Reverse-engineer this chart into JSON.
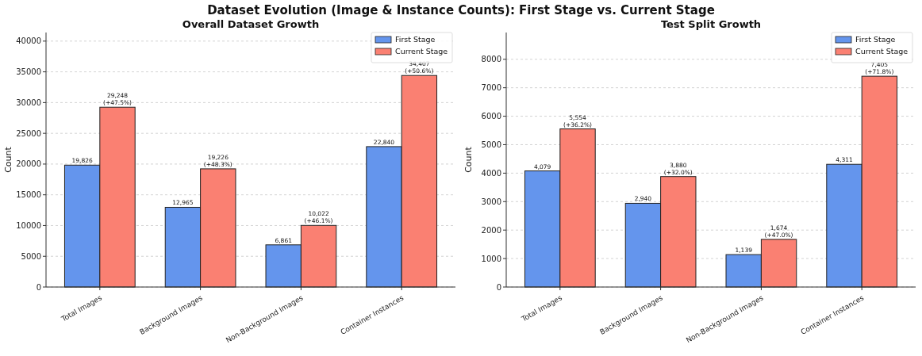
{
  "chart_data": [
    {
      "type": "bar",
      "title": "Overall Dataset Growth",
      "ylabel": "Count",
      "annotations": [
        "Dataset Evolution (Image & Instance Counts): First Stage vs. Current Stage"
      ],
      "categories": [
        "Total Images",
        "Background Images",
        "Non-Background Images",
        "Container Instances"
      ],
      "series": [
        {
          "name": "First Stage",
          "color": "#6495ed",
          "values": [
            19826,
            12965,
            6861,
            22840
          ],
          "value_labels": [
            "19,826",
            "12,965",
            "6,861",
            "22,840"
          ]
        },
        {
          "name": "Current Stage",
          "color": "#fa8072",
          "values": [
            29248,
            19226,
            10022,
            34407
          ],
          "value_labels": [
            "29,248\n(+47.5%)",
            "19,226\n(+48.3%)",
            "10,022\n(+46.1%)",
            "34,407\n(+50.6%)"
          ]
        }
      ],
      "ylim": [
        0,
        41400
      ],
      "yticks": [
        0,
        5000,
        10000,
        15000,
        20000,
        25000,
        30000,
        35000,
        40000
      ],
      "grid": "y",
      "legend": "top right"
    },
    {
      "type": "bar",
      "title": "Test Split Growth",
      "ylabel": "Count",
      "categories": [
        "Total Images",
        "Background Images",
        "Non-Background Images",
        "Container Instances"
      ],
      "series": [
        {
          "name": "First Stage",
          "color": "#6495ed",
          "values": [
            4079,
            2940,
            1139,
            4311
          ],
          "value_labels": [
            "4,079",
            "2,940",
            "1,139",
            "4,311"
          ]
        },
        {
          "name": "Current Stage",
          "color": "#fa8072",
          "values": [
            5554,
            3880,
            1674,
            7405
          ],
          "value_labels": [
            "5,554\n(+36.2%)",
            "3,880\n(+32.0%)",
            "1,674\n(+47.0%)",
            "7,405\n(+71.8%)"
          ]
        }
      ],
      "ylim": [
        0,
        8940
      ],
      "yticks": [
        0,
        1000,
        2000,
        3000,
        4000,
        5000,
        6000,
        7000,
        8000
      ],
      "grid": "y",
      "legend": "top right"
    }
  ]
}
